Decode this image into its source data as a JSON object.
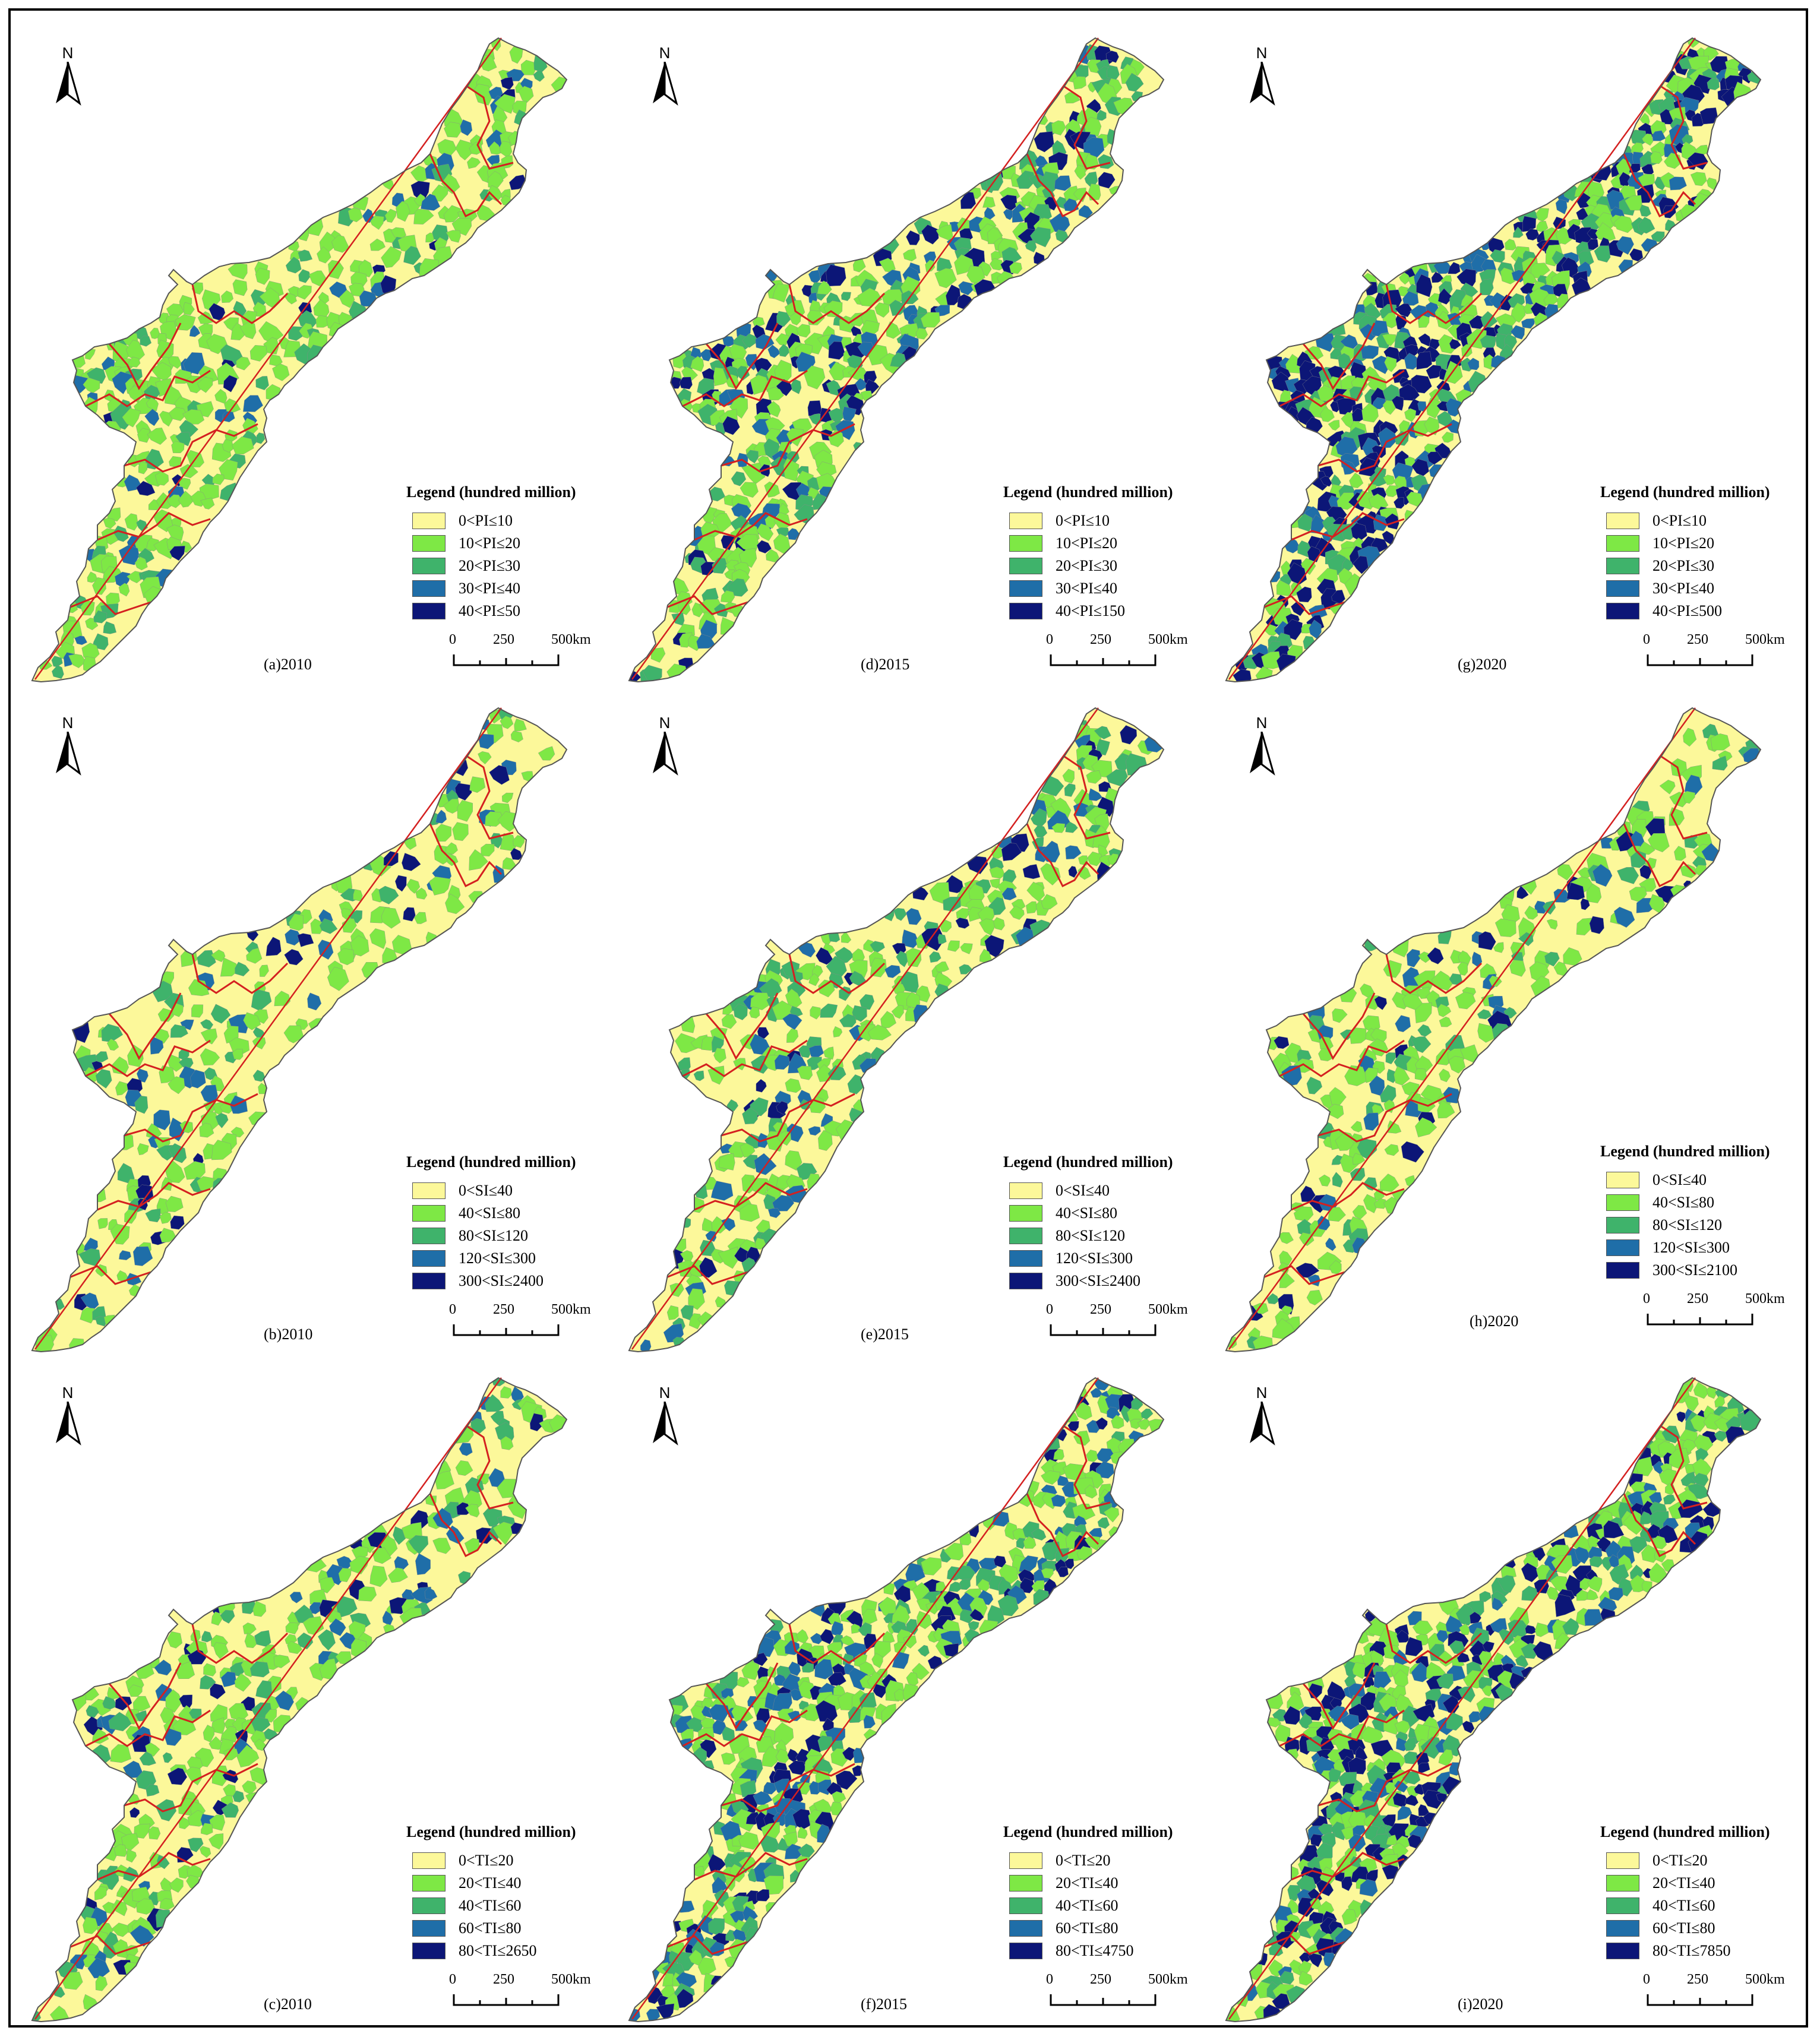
{
  "north_label": "N",
  "scale_labels": [
    "0",
    "250",
    "500km"
  ],
  "legend_title": "Legend (hundred million)",
  "class_colors": [
    "#fcf89a",
    "#7ee845",
    "#3fb36b",
    "#1f6ea8",
    "#0c1677"
  ],
  "boundary_color": "#d42020",
  "panels": [
    {
      "label": "(a)2010",
      "legend": [
        "0<PI≤10",
        "10<PI≤20",
        "20<PI≤30",
        "30<PI≤40",
        "40<PI≤50"
      ]
    },
    {
      "label": "(d)2015",
      "legend": [
        "0<PI≤10",
        "10<PI≤20",
        "20<PI≤30",
        "30<PI≤40",
        "40<PI≤150"
      ]
    },
    {
      "label": "(g)2020",
      "legend": [
        "0<PI≤10",
        "10<PI≤20",
        "20<PI≤30",
        "30<PI≤40",
        "40<PI≤500"
      ]
    },
    {
      "label": "(b)2010",
      "legend": [
        "0<SI≤40",
        "40<SI≤80",
        "80<SI≤120",
        "120<SI≤300",
        "300<SI≤2400"
      ]
    },
    {
      "label": "(e)2015",
      "legend": [
        "0<SI≤40",
        "40<SI≤80",
        "80<SI≤120",
        "120<SI≤300",
        "300<SI≤2400"
      ]
    },
    {
      "label": "(h)2020",
      "legend": [
        "0<SI≤40",
        "40<SI≤80",
        "80<SI≤120",
        "120<SI≤300",
        "300<SI≤2100"
      ]
    },
    {
      "label": "(c)2010",
      "legend": [
        "0<TI≤20",
        "20<TI≤40",
        "40<TI≤60",
        "60<TI≤80",
        "80<TI≤2650"
      ]
    },
    {
      "label": "(f)2015",
      "legend": [
        "0<TI≤20",
        "20<TI≤40",
        "40<TI≤60",
        "60<TI≤80",
        "80<TI≤4750"
      ]
    },
    {
      "label": "(i)2020",
      "legend": [
        "0<TI≤20",
        "20<TI≤40",
        "40<TI≤60",
        "60<TI≤80",
        "80<TI≤7850"
      ]
    }
  ]
}
